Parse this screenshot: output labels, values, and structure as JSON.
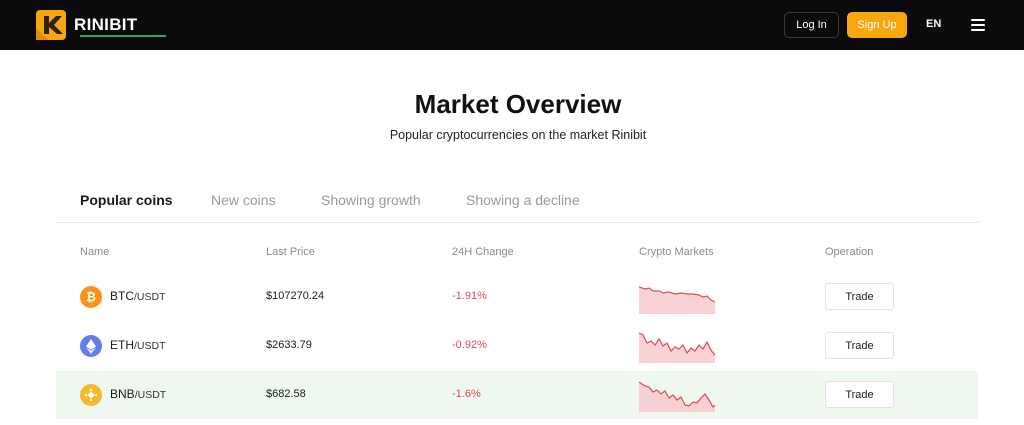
{
  "header": {
    "brand": "RINIBIT",
    "login": "Log In",
    "signup": "Sign Up",
    "language": "EN",
    "accent_color": "#f6a60e"
  },
  "page": {
    "title": "Market Overview",
    "subtitle": "Popular cryptocurrencies on the market Rinibit"
  },
  "tabs": [
    {
      "label": "Popular coins",
      "active": true
    },
    {
      "label": "New coins",
      "active": false
    },
    {
      "label": "Showing growth",
      "active": false
    },
    {
      "label": "Showing a decline",
      "active": false
    }
  ],
  "table": {
    "columns": [
      "Name",
      "Last Price",
      "24H Change",
      "Crypto Markets",
      "Operation"
    ],
    "rows": [
      {
        "base": "BTC",
        "quote": "/USDT",
        "price": "$107270.24",
        "change": "-1.91%",
        "action": "Trade",
        "icon": "bitcoin-icon",
        "icon_color": "#f7931a"
      },
      {
        "base": "ETH",
        "quote": "/USDT",
        "price": "$2633.79",
        "change": "-0.92%",
        "action": "Trade",
        "icon": "ethereum-icon",
        "icon_color": "#627eea"
      },
      {
        "base": "BNB",
        "quote": "/USDT",
        "price": "$682.58",
        "change": "-1.6%",
        "action": "Trade",
        "icon": "bnb-icon",
        "icon_color": "#f3ba2f"
      }
    ]
  },
  "colors": {
    "negative": "#e04b55",
    "tab_active_underline": "#2aa86a",
    "highlight_row": "#eef8ee"
  }
}
